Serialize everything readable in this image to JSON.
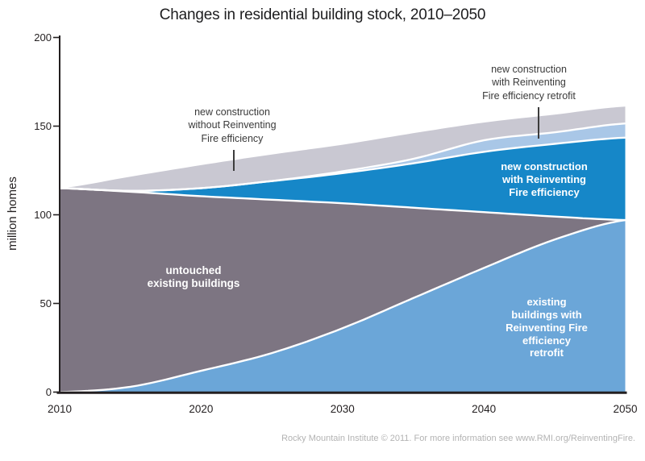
{
  "header": {
    "title": "Changes in residential building stock, 2010–2050"
  },
  "footer": {
    "text": "Rocky Mountain Institute © 2011. For more information see www.RMI.org/ReinventingFire."
  },
  "chart_data": {
    "type": "area",
    "stacked": true,
    "title": "Changes in residential building stock, 2010–2050",
    "ylabel": "million homes",
    "xlabel": "",
    "xlim": [
      2010,
      2050
    ],
    "ylim": [
      0,
      200
    ],
    "grid": false,
    "x": [
      2010,
      2015,
      2020,
      2025,
      2030,
      2035,
      2040,
      2045,
      2050
    ],
    "x_ticks": [
      {
        "value": 2010,
        "label": "2010"
      },
      {
        "value": 2020,
        "label": "2020"
      },
      {
        "value": 2030,
        "label": "2030"
      },
      {
        "value": 2040,
        "label": "2040"
      },
      {
        "value": 2050,
        "label": "2050"
      }
    ],
    "y_ticks": [
      {
        "value": 0,
        "label": "0"
      },
      {
        "value": 50,
        "label": "50"
      },
      {
        "value": 100,
        "label": "100"
      },
      {
        "value": 150,
        "label": "150"
      },
      {
        "value": 200,
        "label": "200"
      }
    ],
    "series": [
      {
        "id": "existing-buildings-rf-retrofit",
        "name": "existing buildings with Reinventing Fire efficiency retrofit",
        "area_label": "existing\nbuildings with\nReinventing Fire\nefficiency\nretrofit",
        "color": "#6ba6d8",
        "values": [
          0,
          3,
          12,
          22,
          36,
          53,
          70,
          86,
          97
        ]
      },
      {
        "id": "untouched-existing-buildings",
        "name": "untouched existing buildings",
        "area_label": "untouched\nexisting buildings",
        "color": "#7d7582",
        "values": [
          115,
          110,
          98.5,
          86.5,
          70.5,
          51,
          31.5,
          13,
          0
        ]
      },
      {
        "id": "new-construction-rf-efficiency",
        "name": "new construction with Reinventing Fire efficiency",
        "area_label": "new construction\nwith Reinventing\nFire efficiency",
        "color": "#1687c8",
        "values": [
          0,
          0.5,
          4.5,
          10.5,
          17,
          25,
          34,
          41,
          46.5
        ]
      },
      {
        "id": "new-construction-rf-retrofit",
        "name": "new construction with Reinventing Fire efficiency retrofit",
        "area_label": "",
        "color": "#a9c7e7",
        "values": [
          0,
          0,
          0,
          0,
          1,
          2.5,
          6.5,
          6.5,
          8
        ]
      },
      {
        "id": "new-construction-without-rf",
        "name": "new construction without Reinventing Fire efficiency",
        "area_label": "",
        "color": "#c9c8d2",
        "values": [
          0,
          8,
          13,
          15,
          15,
          14.5,
          10,
          10,
          9.5
        ]
      }
    ],
    "annotations": [
      {
        "target": "new-construction-without-rf",
        "text": "new construction\nwithout Reinventing\nFire efficiency"
      },
      {
        "target": "new-construction-rf-retrofit",
        "text": "new construction\nwith Reinventing\nFire efficiency retrofit"
      }
    ],
    "boundary_stroke_color": "#ffffff",
    "axis_color": "#231f20"
  }
}
